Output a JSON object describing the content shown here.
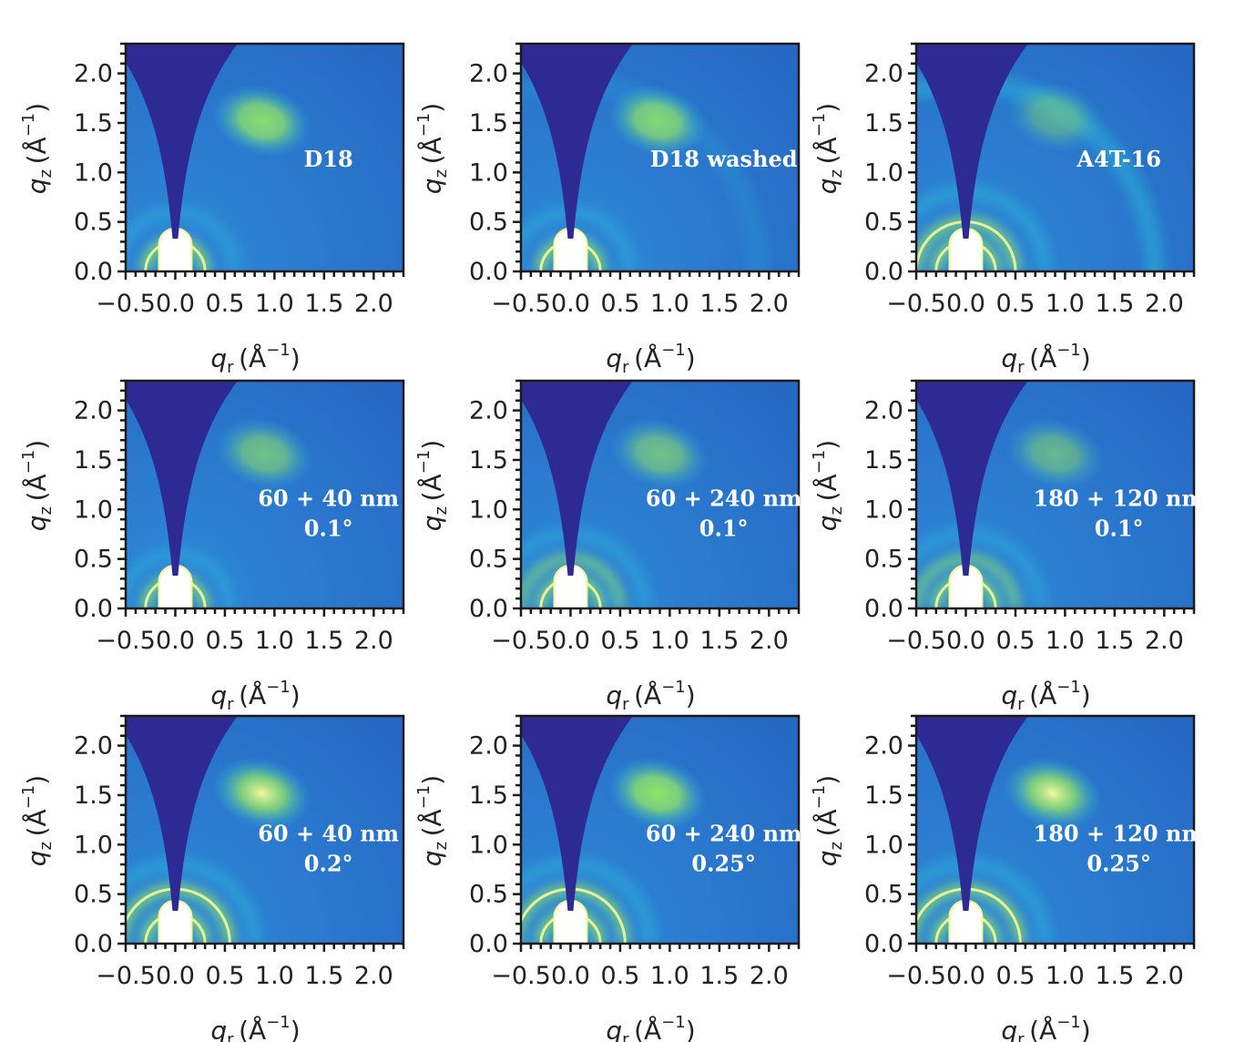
{
  "figure": {
    "background": "#ffffff",
    "colors": {
      "background_blue": "#2a7fd0",
      "shadow": "#2e2a94",
      "cyan": "#29b6d8",
      "green": "#8ee36a",
      "yellow": "#f4f79a",
      "peak_white": "#ffffff",
      "label_text": "#ffffff"
    }
  },
  "chart_data": [
    {
      "type": "heatmap",
      "labels": [
        "D18"
      ],
      "xlabel": "q_r (Å^-1)",
      "ylabel": "q_z (Å^-1)",
      "xlim": [
        -0.5,
        2.3
      ],
      "ylim": [
        0.0,
        2.3
      ],
      "x_ticks": [
        "−0.5",
        "0.0",
        "0.5",
        "1.0",
        "1.5",
        "2.0"
      ],
      "y_ticks": [
        "0.0",
        "0.5",
        "1.0",
        "1.5",
        "2.0"
      ],
      "features": {
        "pi_pi_arc": {
          "q": 1.75,
          "intensity": 0.6
        },
        "lamellar_rings": [
          {
            "q": 0.3,
            "intensity": 1.0
          },
          {
            "q": 0.6,
            "intensity": 0.25
          }
        ],
        "outer_ring": null
      }
    },
    {
      "type": "heatmap",
      "labels": [
        "D18 washed"
      ],
      "xlabel": "q_r (Å^-1)",
      "ylabel": "q_z (Å^-1)",
      "xlim": [
        -0.5,
        2.3
      ],
      "ylim": [
        0.0,
        2.3
      ],
      "x_ticks": [
        "−0.5",
        "0.0",
        "0.5",
        "1.0",
        "1.5",
        "2.0"
      ],
      "y_ticks": [
        "0.0",
        "0.5",
        "1.0",
        "1.5",
        "2.0"
      ],
      "features": {
        "pi_pi_arc": {
          "q": 1.75,
          "intensity": 0.55
        },
        "lamellar_rings": [
          {
            "q": 0.3,
            "intensity": 1.0
          },
          {
            "q": 0.6,
            "intensity": 0.3
          }
        ],
        "outer_ring": {
          "q": 1.9,
          "intensity": 0.2
        }
      }
    },
    {
      "type": "heatmap",
      "labels": [
        "A4T-16"
      ],
      "xlabel": "q_r (Å^-1)",
      "ylabel": "q_z (Å^-1)",
      "xlim": [
        -0.5,
        2.3
      ],
      "ylim": [
        0.0,
        2.3
      ],
      "x_ticks": [
        "−0.5",
        "0.0",
        "0.5",
        "1.0",
        "1.5",
        "2.0"
      ],
      "y_ticks": [
        "0.0",
        "0.5",
        "1.0",
        "1.5",
        "2.0"
      ],
      "features": {
        "pi_pi_arc": {
          "q": 1.8,
          "intensity": 0.15
        },
        "lamellar_rings": [
          {
            "q": 0.3,
            "intensity": 1.0
          },
          {
            "q": 0.5,
            "intensity": 0.7
          },
          {
            "q": 0.8,
            "intensity": 0.35
          }
        ],
        "outer_ring": {
          "q": 1.9,
          "intensity": 0.5
        }
      }
    },
    {
      "type": "heatmap",
      "labels": [
        "60 + 40 nm",
        "0.1°"
      ],
      "xlabel": "q_r (Å^-1)",
      "ylabel": "q_z (Å^-1)",
      "xlim": [
        -0.5,
        2.3
      ],
      "ylim": [
        0.0,
        2.3
      ],
      "x_ticks": [
        "−0.5",
        "0.0",
        "0.5",
        "1.0",
        "1.5",
        "2.0"
      ],
      "y_ticks": [
        "0.0",
        "0.5",
        "1.0",
        "1.5",
        "2.0"
      ],
      "features": {
        "pi_pi_arc": {
          "q": 1.8,
          "intensity": 0.35
        },
        "lamellar_rings": [
          {
            "q": 0.3,
            "intensity": 0.9
          },
          {
            "q": 0.55,
            "intensity": 0.3
          }
        ],
        "outer_ring": null
      }
    },
    {
      "type": "heatmap",
      "labels": [
        "60 + 240 nm",
        "0.1°"
      ],
      "xlabel": "q_r (Å^-1)",
      "ylabel": "q_z (Å^-1)",
      "xlim": [
        -0.5,
        2.3
      ],
      "ylim": [
        0.0,
        2.3
      ],
      "x_ticks": [
        "−0.5",
        "0.0",
        "0.5",
        "1.0",
        "1.5",
        "2.0"
      ],
      "y_ticks": [
        "0.0",
        "0.5",
        "1.0",
        "1.5",
        "2.0"
      ],
      "features": {
        "pi_pi_arc": {
          "q": 1.8,
          "intensity": 0.35
        },
        "lamellar_rings": [
          {
            "q": 0.3,
            "intensity": 0.9
          },
          {
            "q": 0.5,
            "intensity": 0.45
          },
          {
            "q": 0.75,
            "intensity": 0.2
          }
        ],
        "outer_ring": null
      }
    },
    {
      "type": "heatmap",
      "labels": [
        "180 + 120 nm",
        "0.1°"
      ],
      "xlabel": "q_r (Å^-1)",
      "ylabel": "q_z (Å^-1)",
      "xlim": [
        -0.5,
        2.3
      ],
      "ylim": [
        0.0,
        2.3
      ],
      "x_ticks": [
        "−0.5",
        "0.0",
        "0.5",
        "1.0",
        "1.5",
        "2.0"
      ],
      "y_ticks": [
        "0.0",
        "0.5",
        "1.0",
        "1.5",
        "2.0"
      ],
      "features": {
        "pi_pi_arc": {
          "q": 1.8,
          "intensity": 0.25
        },
        "lamellar_rings": [
          {
            "q": 0.3,
            "intensity": 0.9
          },
          {
            "q": 0.5,
            "intensity": 0.45
          },
          {
            "q": 0.75,
            "intensity": 0.2
          }
        ],
        "outer_ring": null
      }
    },
    {
      "type": "heatmap",
      "labels": [
        "60 + 40 nm",
        "0.2°"
      ],
      "xlabel": "q_r (Å^-1)",
      "ylabel": "q_z (Å^-1)",
      "xlim": [
        -0.5,
        2.3
      ],
      "ylim": [
        0.0,
        2.3
      ],
      "x_ticks": [
        "−0.5",
        "0.0",
        "0.5",
        "1.0",
        "1.5",
        "2.0"
      ],
      "y_ticks": [
        "0.0",
        "0.5",
        "1.0",
        "1.5",
        "2.0"
      ],
      "features": {
        "pi_pi_arc": {
          "q": 1.75,
          "intensity": 1.0
        },
        "lamellar_rings": [
          {
            "q": 0.3,
            "intensity": 1.0
          },
          {
            "q": 0.55,
            "intensity": 0.75
          },
          {
            "q": 0.8,
            "intensity": 0.3
          }
        ],
        "outer_ring": null
      }
    },
    {
      "type": "heatmap",
      "labels": [
        "60 + 240 nm",
        "0.25°"
      ],
      "xlabel": "q_r (Å^-1)",
      "ylabel": "q_z (Å^-1)",
      "xlim": [
        -0.5,
        2.3
      ],
      "ylim": [
        0.0,
        2.3
      ],
      "x_ticks": [
        "−0.5",
        "0.0",
        "0.5",
        "1.0",
        "1.5",
        "2.0"
      ],
      "y_ticks": [
        "0.0",
        "0.5",
        "1.0",
        "1.5",
        "2.0"
      ],
      "features": {
        "pi_pi_arc": {
          "q": 1.75,
          "intensity": 0.65
        },
        "lamellar_rings": [
          {
            "q": 0.3,
            "intensity": 1.0
          },
          {
            "q": 0.55,
            "intensity": 0.65
          },
          {
            "q": 0.8,
            "intensity": 0.3
          }
        ],
        "outer_ring": null
      }
    },
    {
      "type": "heatmap",
      "labels": [
        "180 + 120 nm",
        "0.25°"
      ],
      "xlabel": "q_r (Å^-1)",
      "ylabel": "q_z (Å^-1)",
      "xlim": [
        -0.5,
        2.3
      ],
      "ylim": [
        0.0,
        2.3
      ],
      "x_ticks": [
        "−0.5",
        "0.0",
        "0.5",
        "1.0",
        "1.5",
        "2.0"
      ],
      "y_ticks": [
        "0.0",
        "0.5",
        "1.0",
        "1.5",
        "2.0"
      ],
      "features": {
        "pi_pi_arc": {
          "q": 1.75,
          "intensity": 0.95
        },
        "lamellar_rings": [
          {
            "q": 0.3,
            "intensity": 1.0
          },
          {
            "q": 0.55,
            "intensity": 0.7
          },
          {
            "q": 0.8,
            "intensity": 0.3
          }
        ],
        "outer_ring": null
      }
    }
  ]
}
